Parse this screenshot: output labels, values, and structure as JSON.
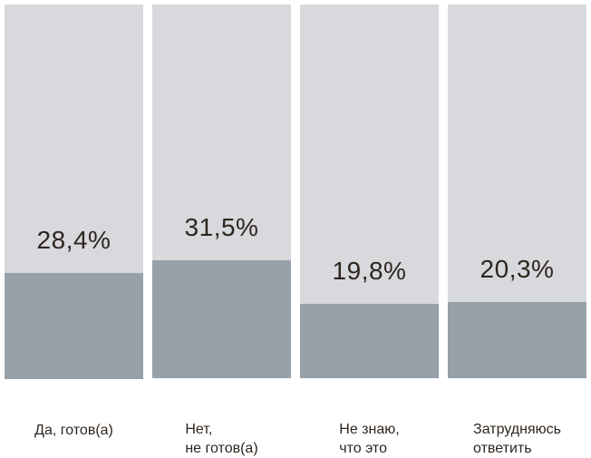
{
  "chart_data": {
    "type": "bar",
    "subtype": "percentage-filled-columns",
    "title": "",
    "xlabel": "",
    "ylabel": "",
    "ylim": [
      0,
      100
    ],
    "grid": false,
    "axes": "none",
    "legend": "none",
    "categories": [
      "Да, готов(а)",
      "Нет, не готов(а)",
      "Не знаю, что это",
      "Затрудняюсь ответить"
    ],
    "values": [
      28.4,
      31.5,
      19.8,
      20.3
    ],
    "bars": [
      {
        "value": 28.4,
        "value_label": "28,4%",
        "category_lines": [
          "Да, готов(а)",
          ""
        ]
      },
      {
        "value": 31.5,
        "value_label": "31,5%",
        "category_lines": [
          "Нет,",
          "не готов(а)"
        ]
      },
      {
        "value": 19.8,
        "value_label": "19,8%",
        "category_lines": [
          "Не знаю,",
          "что это"
        ]
      },
      {
        "value": 20.3,
        "value_label": "20,3%",
        "category_lines": [
          "Затрудняюсь",
          "ответить"
        ]
      }
    ],
    "colors": {
      "track": "#d8d9dd",
      "fill": "#98a1a9",
      "text": "#2e251e",
      "background": "#ffffff"
    }
  }
}
